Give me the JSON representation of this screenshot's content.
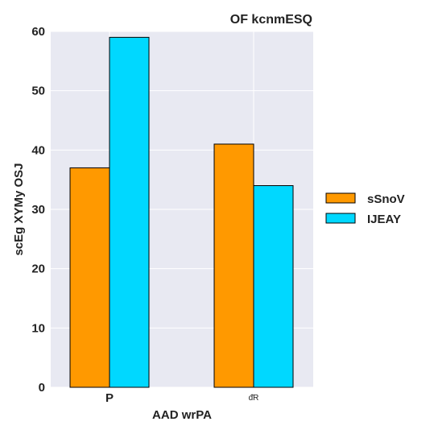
{
  "chart_data": {
    "type": "bar",
    "title": "OF kcnmESQ",
    "xlabel": "AAD wrPA",
    "ylabel": "scEg XYMy OSJ",
    "categories": [
      "P",
      "ᵭR"
    ],
    "series": [
      {
        "name": "sSnoV",
        "values": [
          37,
          41
        ],
        "color": "#ff9900"
      },
      {
        "name": "IJEAY",
        "values": [
          59,
          34
        ],
        "color": "#00d8ff"
      }
    ],
    "ylim": [
      0,
      60
    ],
    "yticks": [
      0,
      10,
      20,
      30,
      40,
      50,
      60
    ],
    "grid": true,
    "legend_position": "right"
  }
}
